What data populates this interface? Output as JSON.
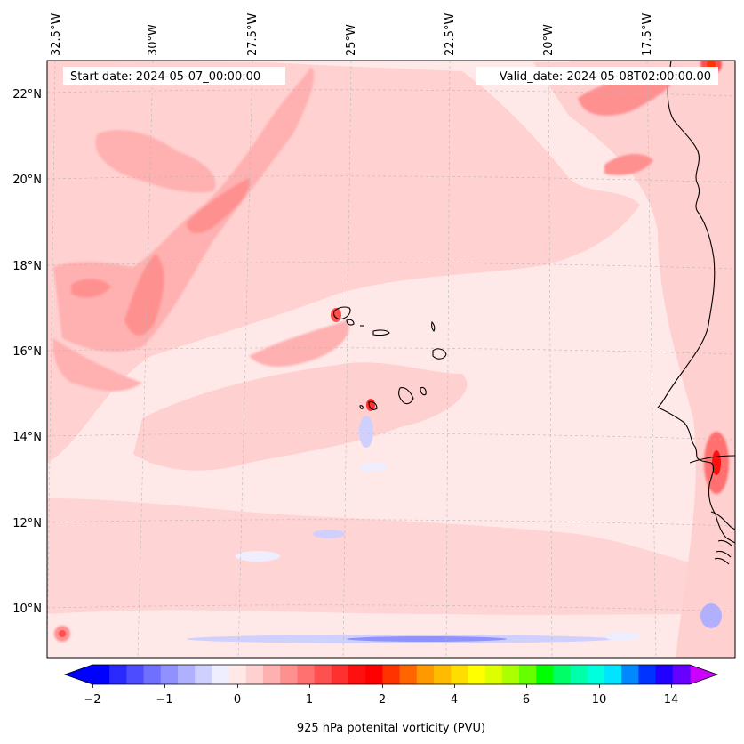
{
  "map": {
    "start_label": "Start date: 2024-05-07_00:00:00",
    "valid_label": "Valid_date: 2024-05-08T02:00:00.00",
    "lon_labels": [
      "32.5°W",
      "30°W",
      "27.5°W",
      "25°W",
      "22.5°W",
      "20°W",
      "17.5°W"
    ],
    "lat_labels": [
      "22°N",
      "20°N",
      "18°N",
      "16°N",
      "14°N",
      "12°N",
      "10°N"
    ],
    "background_color": "#ffe8e8"
  },
  "colorbar": {
    "label": "925 hPa potenital vorticity (PVU)",
    "ticks": [
      "−2",
      "−1",
      "0",
      "1",
      "2",
      "4",
      "6",
      "10",
      "14"
    ],
    "colors": [
      "#0000ff",
      "#2a2aff",
      "#4d4dff",
      "#7070ff",
      "#9090ff",
      "#b0b0ff",
      "#d0d0ff",
      "#eeeeff",
      "#ffe8e8",
      "#ffd0d0",
      "#ffb0b0",
      "#ff9090",
      "#ff7070",
      "#ff5050",
      "#ff3030",
      "#ff1010",
      "#ff0000",
      "#ff3300",
      "#ff6600",
      "#ff9900",
      "#ffbb00",
      "#ffdd00",
      "#ffff00",
      "#ddff00",
      "#aaff00",
      "#66ff00",
      "#00ff00",
      "#00ff66",
      "#00ffaa",
      "#00ffdd",
      "#00e5ff",
      "#0088ff",
      "#0033ff",
      "#2200ff",
      "#6600ff"
    ],
    "under_color": "#0000ff",
    "over_color": "#cc00ff"
  }
}
